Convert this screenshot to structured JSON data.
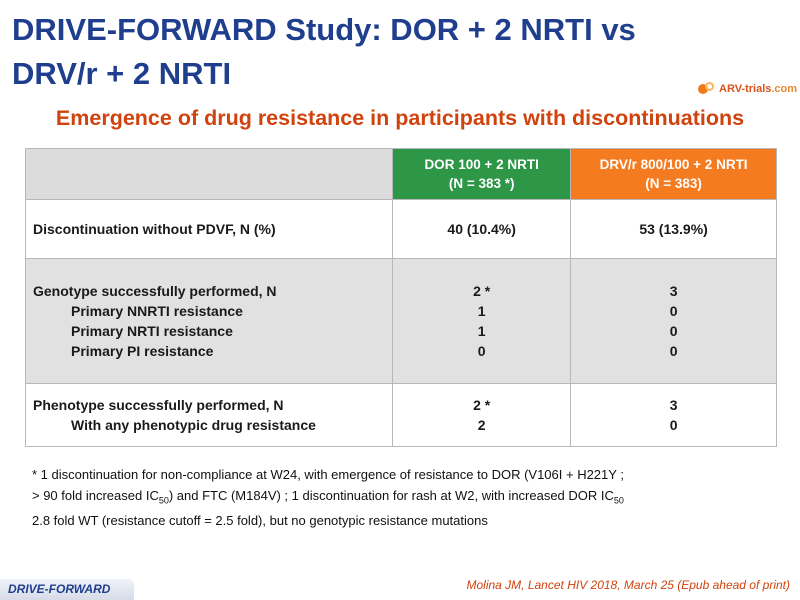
{
  "slide": {
    "title": "DRIVE-FORWARD Study: DOR + 2 NRTI vs DRV/r + 2 NRTI",
    "logo_arv": "ARV-trials",
    "logo_domain": ".com",
    "subtitle": "Emergence of drug resistance in participants with discontinuations"
  },
  "table": {
    "header": {
      "col1": "",
      "col2_line1": "DOR 100 + 2 NRTI",
      "col2_line2": "(N = 383 *)",
      "col3_line1": "DRV/r 800/100 + 2 NRTI",
      "col3_line2": "(N = 383)"
    },
    "row1": {
      "label": "Discontinuation without PDVF, N (%)",
      "dor": "40 (10.4%)",
      "drv": "53 (13.9%)"
    },
    "row2": {
      "label": "Genotype successfully performed, N",
      "sub1": "Primary NNRTI resistance",
      "sub2": "Primary NRTI resistance",
      "sub3": "Primary PI resistance",
      "dor": [
        "2 *",
        "1",
        "1",
        "0"
      ],
      "drv": [
        "3",
        "0",
        "0",
        "0"
      ]
    },
    "row3": {
      "label": "Phenotype successfully performed, N",
      "sub1": "With any phenotypic drug resistance",
      "dor": [
        "2 *",
        "2"
      ],
      "drv": [
        "3",
        "0"
      ]
    }
  },
  "footnote": {
    "p1": "* 1 discontinuation for non-compliance at W24, with emergence of resistance to DOR (V106I + H221Y ;",
    "p2a": "> 90 fold increased IC",
    "p2sub": "50",
    "p2b": ") and FTC (M184V) ; 1 discontinuation for rash at W2, with increased DOR IC",
    "p2sub2": "50",
    "p3": "2.8 fold WT (resistance cutoff = 2.5 fold), but no genotypic resistance mutations"
  },
  "footer": {
    "tab_label": "DRIVE-FORWARD",
    "citation": "Molina JM, Lancet HIV 2018, March 25 (Epub ahead of print)"
  },
  "colors": {
    "title": "#1f3e8e",
    "subtitle": "#d0430e",
    "dor_header": "#2d9747",
    "drv_header": "#f47b20",
    "shaded_row": "#e1e1e1"
  }
}
